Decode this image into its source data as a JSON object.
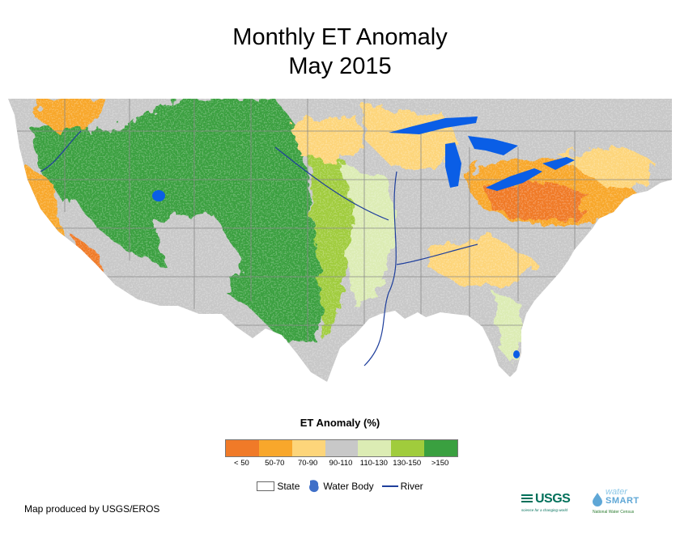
{
  "title": {
    "line1": "Monthly ET Anomaly",
    "line2": "May 2015"
  },
  "legend": {
    "title": "ET Anomaly (%)",
    "classes": [
      {
        "label": "< 50",
        "color": "#f07a28"
      },
      {
        "label": "50-70",
        "color": "#f8a72b"
      },
      {
        "label": "70-90",
        "color": "#fdd57a"
      },
      {
        "label": "90-110",
        "color": "#c8c8c8"
      },
      {
        "label": "110-130",
        "color": "#dcecb4"
      },
      {
        "label": "130-150",
        "color": "#a0cc3c"
      },
      {
        "label": ">150",
        "color": "#3aa040"
      }
    ]
  },
  "key": {
    "state": "State",
    "water_body": "Water Body",
    "river": "River"
  },
  "credit": "Map produced by USGS/EROS",
  "logos": {
    "usgs": "USGS",
    "usgs_tagline": "science for a changing world",
    "watersmart_1": "water",
    "watersmart_2": "SMART",
    "watersmart_sub": "National Water Census"
  }
}
